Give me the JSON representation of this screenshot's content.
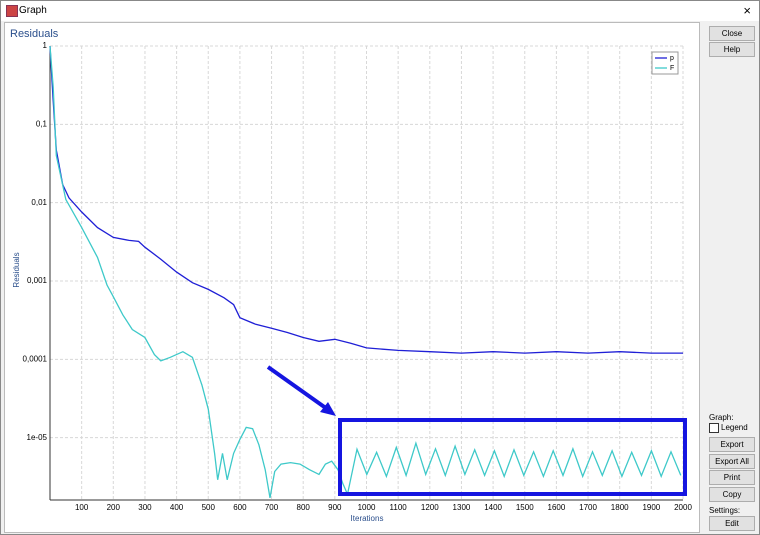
{
  "window": {
    "title": "Graph"
  },
  "ui": {
    "buttons_top": [
      "Close",
      "Help"
    ],
    "graph_label": "Graph:",
    "legend_checkbox": "Legend",
    "buttons_graph": [
      "Export",
      "Export All",
      "Print",
      "Copy"
    ],
    "settings_label": "Settings:",
    "buttons_settings": [
      "Edit"
    ]
  },
  "chart_data": {
    "type": "line",
    "title": "Residuals",
    "x_label": "Iterations",
    "y_label": "Residuals",
    "log_y": true,
    "grid": true,
    "legend": "top-right",
    "xlim": [
      0,
      2000
    ],
    "xticks": [
      100,
      200,
      300,
      400,
      500,
      600,
      700,
      800,
      900,
      1000,
      1100,
      1200,
      1300,
      1400,
      1500,
      1600,
      1700,
      1800,
      1900,
      2000
    ],
    "ylim": [
      1.6e-06,
      1
    ],
    "yticks": [
      1,
      {
        "value": 0.1,
        "label": "0,1"
      },
      {
        "value": 0.01,
        "label": "0,01"
      },
      {
        "value": 0.001,
        "label": "0,001"
      },
      {
        "value": 0.0001,
        "label": "0,0001"
      },
      {
        "value": 1e-05,
        "label": "1e-05"
      }
    ],
    "series": [
      {
        "name": "p",
        "color": "#1f1fd6",
        "x": [
          0,
          10,
          20,
          40,
          60,
          100,
          150,
          200,
          250,
          280,
          300,
          350,
          400,
          450,
          500,
          550,
          580,
          600,
          650,
          700,
          750,
          800,
          850,
          900,
          950,
          1000,
          1100,
          1200,
          1300,
          1400,
          1500,
          1600,
          1700,
          1800,
          1900,
          2000
        ],
        "values": [
          1,
          0.2,
          0.047,
          0.017,
          0.0115,
          0.0076,
          0.0048,
          0.0036,
          0.0033,
          0.0032,
          0.0027,
          0.0019,
          0.0013,
          0.00095,
          0.00078,
          0.00061,
          0.0005,
          0.00034,
          0.00028,
          0.00025,
          0.00022,
          0.00019,
          0.00017,
          0.00018,
          0.00016,
          0.00014,
          0.00013,
          0.000125,
          0.00012,
          0.000125,
          0.00012,
          0.000125,
          0.00012,
          0.000125,
          0.00012,
          0.00012
        ]
      },
      {
        "name": "F",
        "color": "#3ec9c9",
        "x": [
          0,
          10,
          20,
          50,
          100,
          150,
          180,
          200,
          230,
          260,
          300,
          330,
          350,
          380,
          420,
          450,
          480,
          500,
          520,
          530,
          545,
          560,
          580,
          600,
          620,
          640,
          660,
          680,
          695,
          710,
          730,
          760,
          790,
          820,
          850,
          870,
          890,
          910,
          925,
          940,
          970,
          1001,
          1032,
          1063,
          1094,
          1125,
          1156,
          1187,
          1218,
          1249,
          1280,
          1311,
          1342,
          1373,
          1404,
          1435,
          1466,
          1497,
          1528,
          1559,
          1590,
          1621,
          1652,
          1683,
          1714,
          1745,
          1776,
          1807,
          1838,
          1869,
          1900,
          1931,
          1962,
          1993
        ],
        "values": [
          1,
          0.3,
          0.04,
          0.011,
          0.0048,
          0.002,
          0.00089,
          0.00063,
          0.00037,
          0.00024,
          0.00019,
          0.000115,
          9.55e-05,
          0.000106,
          0.000125,
          0.000106,
          4.7e-05,
          2.3e-05,
          6.3e-06,
          2.9e-06,
          6.3e-06,
          2.9e-06,
          6.3e-06,
          9.5e-06,
          1.35e-05,
          1.3e-05,
          8.1e-06,
          3.9e-06,
          1.7e-06,
          3.7e-06,
          4.6e-06,
          4.8e-06,
          4.6e-06,
          3.9e-06,
          3.4e-06,
          4.6e-06,
          5e-06,
          3.9e-06,
          2.6e-06,
          1.9e-06,
          7.1e-06,
          3.4e-06,
          6.5e-06,
          3.2e-06,
          7.5e-06,
          3.3e-06,
          8.5e-06,
          3.4e-06,
          7.2e-06,
          3.3e-06,
          7.8e-06,
          3.4e-06,
          7e-06,
          3.3e-06,
          6.8e-06,
          3.2e-06,
          7e-06,
          3.3e-06,
          6.6e-06,
          3.2e-06,
          6.8e-06,
          3.3e-06,
          7.2e-06,
          3.2e-06,
          6.6e-06,
          3.3e-06,
          6.8e-06,
          3.2e-06,
          6.5e-06,
          3.3e-06,
          6.8e-06,
          3.2e-06,
          6.6e-06,
          3.3e-06
        ]
      }
    ]
  }
}
